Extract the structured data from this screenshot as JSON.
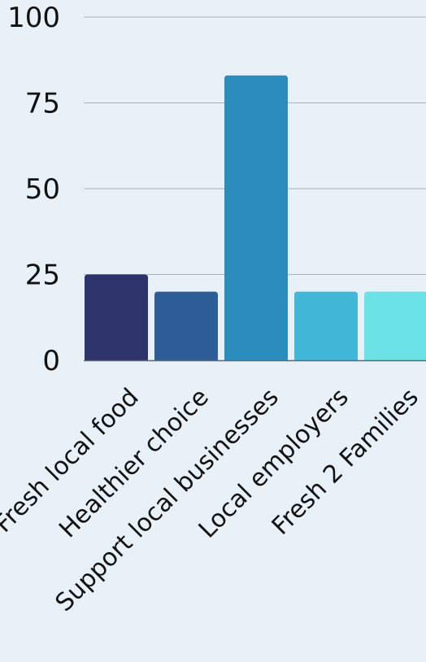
{
  "chart_data": {
    "type": "bar",
    "categories": [
      "Fresh local food",
      "Healthier choice",
      "Support local businesses",
      "Local employers",
      "Fresh 2 Families"
    ],
    "values": [
      25,
      20,
      83,
      20,
      20
    ],
    "ylim": [
      0,
      100
    ],
    "yticks": [
      "0",
      "25",
      "50",
      "75",
      "100"
    ],
    "grid": true,
    "colors": [
      "#2f336b",
      "#2d5e97",
      "#2b8dbb",
      "#41b8d8",
      "#6be3e6"
    ],
    "gridline_color": "#a9b2bd",
    "axis_color": "#5f6670",
    "background": "#e8f0f8"
  }
}
